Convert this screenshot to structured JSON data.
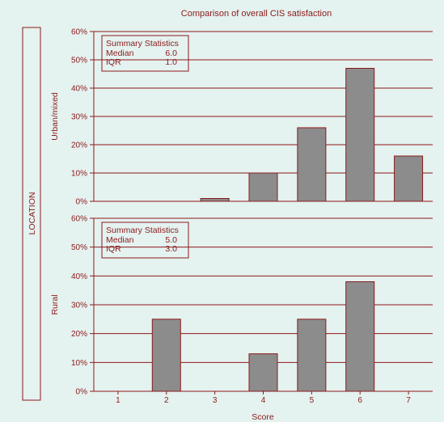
{
  "page": {
    "background": "#e4f2f0",
    "accent": "#8b1a1a",
    "bar_color": "#8c8c8c",
    "bar_stroke": "#8b1a1a"
  },
  "chart_data": {
    "type": "bar",
    "title": "Comparison of overall CIS satisfaction",
    "xlabel": "Score",
    "outer_label": "LOCATION",
    "categories": [
      "1",
      "2",
      "3",
      "4",
      "5",
      "6",
      "7"
    ],
    "ylim": [
      0,
      60
    ],
    "yticks": [
      "0%",
      "10%",
      "20%",
      "30%",
      "40%",
      "50%",
      "60%"
    ],
    "grid": true,
    "panels": [
      {
        "label": "Urban/mixed",
        "values": [
          0,
          0,
          1,
          10,
          26,
          47,
          16
        ],
        "summary": {
          "heading": "Summary Statistics",
          "rows": [
            {
              "name": "Median",
              "value": "6.0"
            },
            {
              "name": "IQR",
              "value": "1.0"
            }
          ]
        }
      },
      {
        "label": "Rural",
        "values": [
          0,
          25,
          0,
          13,
          25,
          38,
          0
        ],
        "summary": {
          "heading": "Summary Statistics",
          "rows": [
            {
              "name": "Median",
              "value": "5.0"
            },
            {
              "name": "IQR",
              "value": "3.0"
            }
          ]
        }
      }
    ]
  }
}
